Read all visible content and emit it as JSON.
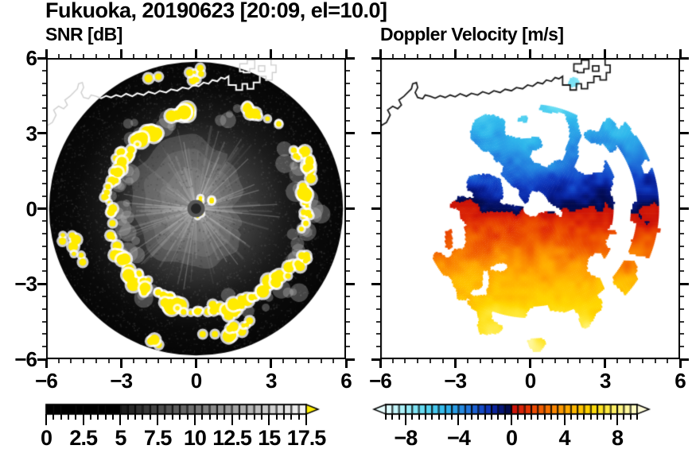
{
  "title": "Fukuoka, 20190623 [20:09, el=10.0]",
  "panels": {
    "snr": {
      "subtitle": "SNR [dB]"
    },
    "doppler": {
      "subtitle": "Doppler Velocity [m/s]"
    }
  },
  "axes": {
    "range": [
      -6,
      6
    ],
    "major_ticks": [
      -6,
      -3,
      0,
      3,
      6
    ],
    "minor_step": 0.5,
    "x_tick_labels": [
      "−6",
      "−3",
      "0",
      "3",
      "6"
    ],
    "y_tick_labels": [
      "6",
      "3",
      "0",
      "−3",
      "−6"
    ]
  },
  "colorbars": {
    "snr": {
      "min": 0,
      "max": 17.5,
      "segment": 0.5,
      "label_values": [
        0,
        2.5,
        5,
        7.5,
        10,
        12.5,
        15,
        17.5
      ],
      "labels": [
        "0",
        "2.5",
        "5",
        "7.5",
        "10",
        "12.5",
        "15",
        "17.5"
      ],
      "black_below": 5,
      "gray_ramp": [
        "#000000",
        "#fafafa"
      ],
      "overflow_color": "#ffee00",
      "outline_color": "#000000"
    },
    "doppler": {
      "min": -9.5,
      "max": 9.5,
      "segment": 0.5,
      "label_values": [
        -8,
        -4,
        0,
        4,
        8
      ],
      "labels": [
        "−8",
        "−4",
        "0",
        "4",
        "8"
      ],
      "under_color": "#eafeff",
      "over_color": "#fffcd8",
      "stops": [
        [
          -9.5,
          "#e8feff"
        ],
        [
          -8.0,
          "#a0eef8"
        ],
        [
          -6.5,
          "#5cd8f2"
        ],
        [
          -5.0,
          "#30b8ec"
        ],
        [
          -4.0,
          "#2894e4"
        ],
        [
          -3.0,
          "#1e6cd8"
        ],
        [
          -2.0,
          "#1240c4"
        ],
        [
          -1.5,
          "#0c2cab"
        ],
        [
          -1.0,
          "#071b8c"
        ],
        [
          -0.5,
          "#041062"
        ],
        [
          -0.25,
          "#030b4e"
        ],
        [
          0.25,
          "#cc1408"
        ],
        [
          1.0,
          "#e02c06"
        ],
        [
          2.0,
          "#ee5400"
        ],
        [
          3.0,
          "#f87c00"
        ],
        [
          4.0,
          "#ffa200"
        ],
        [
          5.0,
          "#ffbe00"
        ],
        [
          6.0,
          "#ffd600"
        ],
        [
          7.0,
          "#ffe62e"
        ],
        [
          8.0,
          "#fff274"
        ],
        [
          9.0,
          "#fff9ac"
        ],
        [
          9.5,
          "#fffcd4"
        ]
      ]
    }
  },
  "scene": {
    "disk_radius": 5.88,
    "coast_main": [
      [
        -6.0,
        3.3
      ],
      [
        -5.75,
        3.45
      ],
      [
        -5.6,
        3.75
      ],
      [
        -5.7,
        3.95
      ],
      [
        -5.5,
        4.1
      ],
      [
        -5.3,
        4.0
      ],
      [
        -5.15,
        4.15
      ],
      [
        -5.25,
        4.35
      ],
      [
        -5.05,
        4.5
      ],
      [
        -4.9,
        4.65
      ],
      [
        -4.75,
        4.8
      ],
      [
        -4.7,
        5.0
      ],
      [
        -4.55,
        5.05
      ],
      [
        -4.5,
        4.85
      ],
      [
        -4.6,
        4.65
      ],
      [
        -4.5,
        4.45
      ],
      [
        -4.3,
        4.4
      ],
      [
        -4.2,
        4.55
      ],
      [
        -4.0,
        4.5
      ],
      [
        -3.8,
        4.42
      ],
      [
        -3.6,
        4.52
      ],
      [
        -3.4,
        4.45
      ],
      [
        -3.2,
        4.55
      ],
      [
        -3.0,
        4.48
      ],
      [
        -2.8,
        4.6
      ],
      [
        -2.55,
        4.5
      ],
      [
        -2.35,
        4.62
      ],
      [
        -2.1,
        4.55
      ],
      [
        -1.9,
        4.68
      ],
      [
        -1.65,
        4.6
      ],
      [
        -1.45,
        4.72
      ],
      [
        -1.2,
        4.65
      ],
      [
        -1.0,
        4.78
      ],
      [
        -0.75,
        4.72
      ],
      [
        -0.55,
        4.85
      ],
      [
        -0.3,
        4.8
      ],
      [
        -0.1,
        4.95
      ],
      [
        0.1,
        4.9
      ],
      [
        0.3,
        5.05
      ],
      [
        0.5,
        5.0
      ],
      [
        0.65,
        5.15
      ],
      [
        0.85,
        5.1
      ],
      [
        1.0,
        5.25
      ],
      [
        1.15,
        5.2
      ],
      [
        1.3,
        5.3
      ],
      [
        1.3,
        4.95
      ],
      [
        1.6,
        4.95
      ],
      [
        1.6,
        4.75
      ],
      [
        1.85,
        4.75
      ],
      [
        1.85,
        5.0
      ],
      [
        2.05,
        5.0
      ],
      [
        2.05,
        4.8
      ],
      [
        2.3,
        4.8
      ],
      [
        2.3,
        5.05
      ],
      [
        2.55,
        5.05
      ],
      [
        2.55,
        5.3
      ],
      [
        2.8,
        5.3
      ],
      [
        2.8,
        5.15
      ],
      [
        3.05,
        5.15
      ],
      [
        3.05,
        5.45
      ],
      [
        3.2,
        5.45
      ],
      [
        3.2,
        5.75
      ],
      [
        3.0,
        5.75
      ],
      [
        3.0,
        6.1
      ]
    ],
    "coast_block": [
      [
        1.75,
        5.5
      ],
      [
        1.75,
        5.8
      ],
      [
        2.05,
        5.8
      ],
      [
        2.05,
        5.95
      ],
      [
        2.35,
        5.95
      ],
      [
        2.35,
        5.6
      ],
      [
        2.15,
        5.6
      ],
      [
        2.15,
        5.45
      ],
      [
        1.9,
        5.45
      ],
      [
        1.9,
        5.5
      ],
      [
        1.75,
        5.5
      ]
    ],
    "coast_block2": [
      [
        2.5,
        5.5
      ],
      [
        2.5,
        5.72
      ],
      [
        2.75,
        5.72
      ],
      [
        2.75,
        5.5
      ],
      [
        2.5,
        5.5
      ]
    ],
    "clutter_ring_radius_by_angle": [
      [
        0,
        4.6
      ],
      [
        30,
        4.6
      ],
      [
        60,
        4.3
      ],
      [
        90,
        4.05
      ],
      [
        120,
        3.7
      ],
      [
        150,
        3.35
      ],
      [
        180,
        3.3
      ],
      [
        210,
        3.45
      ],
      [
        240,
        3.8
      ],
      [
        270,
        4.05
      ],
      [
        300,
        4.3
      ],
      [
        330,
        4.55
      ],
      [
        360,
        4.6
      ]
    ],
    "clutter_color": "#ffeb00",
    "snr_coast_color": "#ffffff",
    "dop_coast_color": "#1a1a1a"
  },
  "chart_data": [
    {
      "type": "heatmap",
      "title": "SNR [dB]",
      "xlim": [
        -6,
        6
      ],
      "ylim": [
        -6,
        6
      ],
      "x_ticks": [
        -6,
        -3,
        0,
        3,
        6
      ],
      "y_ticks": [
        -6,
        -3,
        0,
        3,
        6
      ],
      "minor_tick_step": 0.5,
      "colorbar_range": [
        0,
        17.5
      ],
      "colorbar_step": 0.5,
      "colorbar_tick_labels": [
        "0",
        "2.5",
        "5",
        "7.5",
        "10",
        "12.5",
        "15",
        "17.5"
      ],
      "palette": "grayscale: black below 5 dB ramping to white at 17.5 dB; yellow overflow arrow",
      "description": "Radar PPI scan disk of radius ~5.9 km: dark low-SNR background, brighter grainy core (radius ~3) with radial spokes from the radar at origin, ring of saturated yellow high-SNR clutter blobs with white fringes at radius 3-5.5, dark center dot, white coastline overlay across the northern part of the disk"
    },
    {
      "type": "heatmap",
      "title": "Doppler Velocity [m/s]",
      "xlim": [
        -6,
        6
      ],
      "ylim": [
        -6,
        6
      ],
      "x_ticks": [
        -6,
        -3,
        0,
        3,
        6
      ],
      "y_ticks": [
        -6,
        -3,
        0,
        3,
        6
      ],
      "minor_tick_step": 0.5,
      "colorbar_range": [
        -9.5,
        9.5
      ],
      "colorbar_step": 0.5,
      "colorbar_tick_labels": [
        "−8",
        "−4",
        "0",
        "4",
        "8"
      ],
      "palette": "negative: pale cyan through blue to near-black navy at 0; positive: dark red through orange and yellow to pale cream; arrows both ends",
      "description": "Doppler radial velocity PPI on white background: approaching (negative, blue/cyan) echoes fill the northern half with magnitude increasing with range, receding (positive, red-orange-yellow) echoes fill the southern half; mottled navy/dark-red zero line along east-west through the radar; detached echo arc near the east edge turning blue (north) to red (south); scattered far blobs; black coastline; white dot at the radar origin"
    }
  ]
}
